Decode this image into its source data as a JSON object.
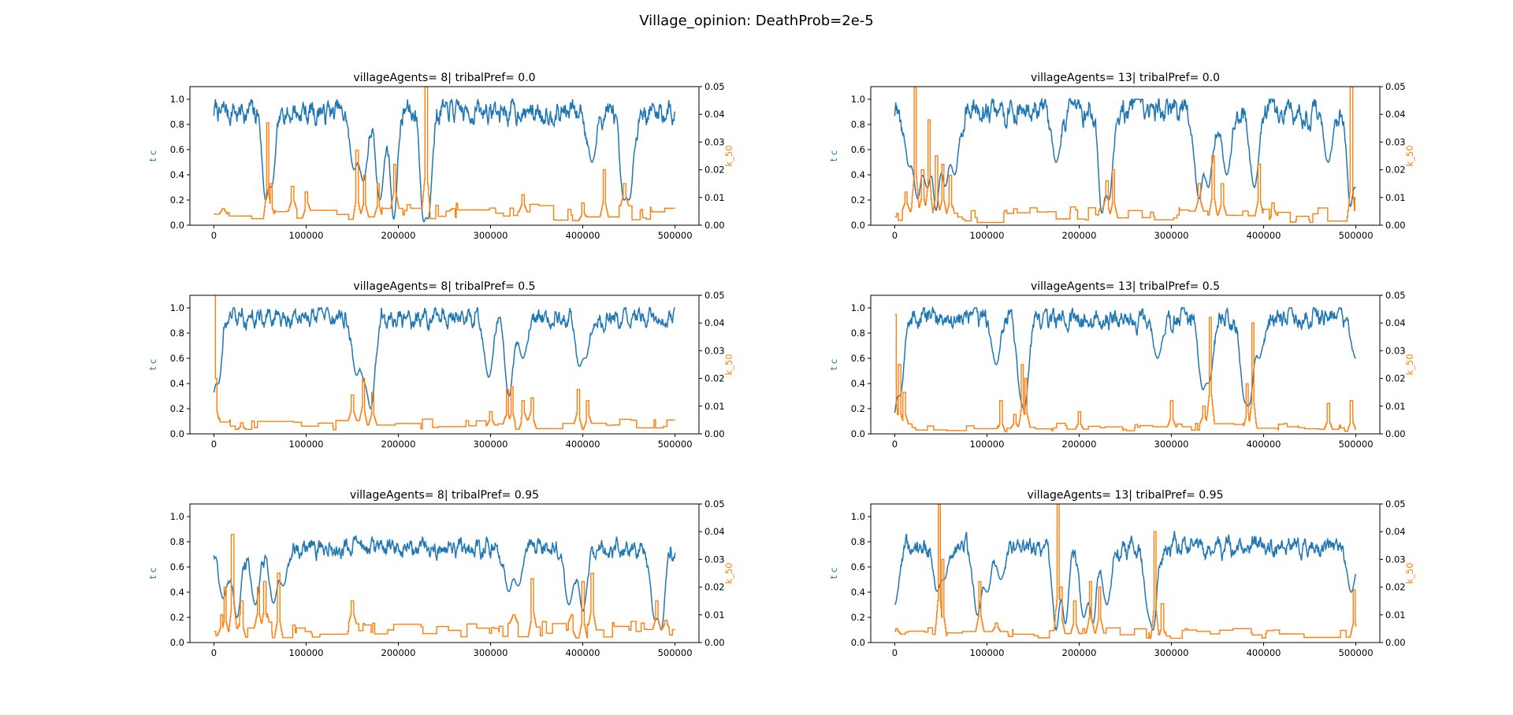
{
  "figure": {
    "suptitle": "Village_opinion: DeathProb=2e-5"
  },
  "colors": {
    "left_series": "#1f77b4",
    "right_series": "#ff7f0e",
    "axes": "#000000",
    "background": "#ffffff"
  },
  "chart_data": [
    {
      "type": "line",
      "title": "villageAgents= 8| tribalPref= 0.0",
      "ylabel": "t c",
      "y2label": "k_50",
      "xlim": [
        -26000,
        526000
      ],
      "ylim": [
        0.0,
        1.1
      ],
      "y2lim": [
        0.0,
        0.05
      ],
      "xticks": [
        0,
        100000,
        200000,
        300000,
        400000,
        500000
      ],
      "yticks": [
        0.0,
        0.2,
        0.4,
        0.6,
        0.8,
        1.0
      ],
      "y2ticks": [
        0.0,
        0.01,
        0.02,
        0.03,
        0.04,
        0.05
      ],
      "series": [
        {
          "axis": "left",
          "color": "#1f77b4",
          "base": 0.9,
          "spread": 0.055,
          "dips": [
            [
              57000,
              0.1
            ],
            [
              62000,
              0.3
            ],
            [
              152000,
              0.45
            ],
            [
              162000,
              0.35
            ],
            [
              180000,
              0.2
            ],
            [
              195000,
              0.05
            ],
            [
              228000,
              0.0
            ],
            [
              232000,
              0.05
            ],
            [
              410000,
              0.5
            ],
            [
              445000,
              0.2
            ],
            [
              450000,
              0.2
            ]
          ]
        },
        {
          "axis": "right",
          "color": "#ff7f0e",
          "base": 0.004,
          "spread": 0.003,
          "spikes": [
            [
              10000,
              0.006
            ],
            [
              58000,
              0.037
            ],
            [
              62000,
              0.015
            ],
            [
              85000,
              0.014
            ],
            [
              100000,
              0.012
            ],
            [
              155000,
              0.027
            ],
            [
              163000,
              0.018
            ],
            [
              178000,
              0.015
            ],
            [
              196000,
              0.022
            ],
            [
              230000,
              0.05
            ],
            [
              260000,
              0.006
            ],
            [
              335000,
              0.011
            ],
            [
              400000,
              0.008
            ],
            [
              423000,
              0.02
            ],
            [
              445000,
              0.015
            ]
          ]
        }
      ]
    },
    {
      "type": "line",
      "title": "villageAgents= 13| tribalPref= 0.0",
      "ylabel": "t c",
      "y2label": "k_50",
      "xlim": [
        -26000,
        526000
      ],
      "ylim": [
        0.0,
        1.1
      ],
      "y2lim": [
        0.0,
        0.05
      ],
      "xticks": [
        0,
        100000,
        200000,
        300000,
        400000,
        500000
      ],
      "yticks": [
        0.0,
        0.2,
        0.4,
        0.6,
        0.8,
        1.0
      ],
      "y2ticks": [
        0.0,
        0.01,
        0.02,
        0.03,
        0.04,
        0.05
      ],
      "series": [
        {
          "axis": "left",
          "color": "#1f77b4",
          "base": 0.9,
          "spread": 0.06,
          "dips": [
            [
              15000,
              0.5
            ],
            [
              25000,
              0.2
            ],
            [
              35000,
              0.3
            ],
            [
              45000,
              0.1
            ],
            [
              55000,
              0.3
            ],
            [
              65000,
              0.4
            ],
            [
              175000,
              0.5
            ],
            [
              225000,
              0.05
            ],
            [
              232000,
              0.2
            ],
            [
              330000,
              0.2
            ],
            [
              340000,
              0.3
            ],
            [
              360000,
              0.4
            ],
            [
              390000,
              0.3
            ],
            [
              470000,
              0.5
            ],
            [
              495000,
              0.0
            ],
            [
              500000,
              0.3
            ]
          ]
        },
        {
          "axis": "right",
          "color": "#ff7f0e",
          "base": 0.003,
          "spread": 0.003,
          "spikes": [
            [
              12000,
              0.012
            ],
            [
              22000,
              0.05
            ],
            [
              30000,
              0.02
            ],
            [
              37000,
              0.038
            ],
            [
              45000,
              0.025
            ],
            [
              52000,
              0.022
            ],
            [
              60000,
              0.018
            ],
            [
              230000,
              0.016
            ],
            [
              237000,
              0.02
            ],
            [
              330000,
              0.015
            ],
            [
              345000,
              0.025
            ],
            [
              355000,
              0.015
            ],
            [
              395000,
              0.022
            ],
            [
              410000,
              0.008
            ],
            [
              495000,
              0.05
            ],
            [
              500000,
              0.01
            ]
          ]
        }
      ]
    },
    {
      "type": "line",
      "title": "villageAgents= 8| tribalPref= 0.5",
      "ylabel": "t c",
      "y2label": "k_50",
      "xlim": [
        -26000,
        526000
      ],
      "ylim": [
        0.0,
        1.1
      ],
      "y2lim": [
        0.0,
        0.05
      ],
      "xticks": [
        0,
        100000,
        200000,
        300000,
        400000,
        500000
      ],
      "yticks": [
        0.0,
        0.2,
        0.4,
        0.6,
        0.8,
        1.0
      ],
      "y2ticks": [
        0.0,
        0.01,
        0.02,
        0.03,
        0.04,
        0.05
      ],
      "series": [
        {
          "axis": "left",
          "color": "#1f77b4",
          "base": 0.92,
          "spread": 0.045,
          "dips": [
            [
              1000,
              0.0
            ],
            [
              3000,
              0.4
            ],
            [
              155000,
              0.45
            ],
            [
              162000,
              0.5
            ],
            [
              170000,
              0.2
            ],
            [
              298000,
              0.45
            ],
            [
              320000,
              0.3
            ],
            [
              335000,
              0.6
            ],
            [
              398000,
              0.45
            ],
            [
              402000,
              0.6
            ]
          ]
        },
        {
          "axis": "right",
          "color": "#ff7f0e",
          "base": 0.003,
          "spread": 0.002,
          "spikes": [
            [
              0,
              0.05
            ],
            [
              2000,
              0.02
            ],
            [
              30000,
              0.004
            ],
            [
              150000,
              0.014
            ],
            [
              162000,
              0.02
            ],
            [
              172000,
              0.015
            ],
            [
              300000,
              0.008
            ],
            [
              318000,
              0.016
            ],
            [
              323000,
              0.017
            ],
            [
              335000,
              0.012
            ],
            [
              345000,
              0.013
            ],
            [
              395000,
              0.016
            ],
            [
              405000,
              0.012
            ]
          ]
        }
      ]
    },
    {
      "type": "line",
      "title": "villageAgents= 13| tribalPref= 0.5",
      "ylabel": "t c",
      "y2label": "k_50",
      "xlim": [
        -26000,
        526000
      ],
      "ylim": [
        0.0,
        1.1
      ],
      "y2lim": [
        0.0,
        0.05
      ],
      "xticks": [
        0,
        100000,
        200000,
        300000,
        400000,
        500000
      ],
      "yticks": [
        0.0,
        0.2,
        0.4,
        0.6,
        0.8,
        1.0
      ],
      "y2ticks": [
        0.0,
        0.01,
        0.02,
        0.03,
        0.04,
        0.05
      ],
      "series": [
        {
          "axis": "left",
          "color": "#1f77b4",
          "base": 0.92,
          "spread": 0.05,
          "dips": [
            [
              0,
              0.0
            ],
            [
              5000,
              0.3
            ],
            [
              110000,
              0.55
            ],
            [
              137000,
              0.5
            ],
            [
              140000,
              0.2
            ],
            [
              285000,
              0.6
            ],
            [
              335000,
              0.3
            ],
            [
              340000,
              0.4
            ],
            [
              380000,
              0.3
            ],
            [
              385000,
              0.2
            ],
            [
              395000,
              0.6
            ],
            [
              500000,
              0.6
            ]
          ]
        },
        {
          "axis": "right",
          "color": "#ff7f0e",
          "base": 0.002,
          "spread": 0.0015,
          "spikes": [
            [
              0,
              0.043
            ],
            [
              5000,
              0.025
            ],
            [
              10000,
              0.015
            ],
            [
              115000,
              0.012
            ],
            [
              130000,
              0.007
            ],
            [
              138000,
              0.025
            ],
            [
              142000,
              0.02
            ],
            [
              200000,
              0.008
            ],
            [
              300000,
              0.012
            ],
            [
              335000,
              0.01
            ],
            [
              342000,
              0.042
            ],
            [
              382000,
              0.018
            ],
            [
              388000,
              0.04
            ],
            [
              470000,
              0.011
            ],
            [
              495000,
              0.012
            ]
          ]
        }
      ]
    },
    {
      "type": "line",
      "title": "villageAgents= 8| tribalPref= 0.95",
      "ylabel": "t c",
      "y2label": "k_50",
      "xlim": [
        -26000,
        526000
      ],
      "ylim": [
        0.0,
        1.1
      ],
      "y2lim": [
        0.0,
        0.05
      ],
      "xticks": [
        0,
        100000,
        200000,
        300000,
        400000,
        500000
      ],
      "yticks": [
        0.0,
        0.2,
        0.4,
        0.6,
        0.8,
        1.0
      ],
      "y2ticks": [
        0.0,
        0.01,
        0.02,
        0.03,
        0.04,
        0.05
      ],
      "series": [
        {
          "axis": "left",
          "color": "#1f77b4",
          "base": 0.75,
          "spread": 0.045,
          "dips": [
            [
              10000,
              0.35
            ],
            [
              25000,
              0.2
            ],
            [
              45000,
              0.3
            ],
            [
              65000,
              0.3
            ],
            [
              75000,
              0.45
            ],
            [
              320000,
              0.4
            ],
            [
              330000,
              0.45
            ],
            [
              385000,
              0.3
            ],
            [
              400000,
              0.25
            ],
            [
              478000,
              0.2
            ],
            [
              485000,
              0.1
            ]
          ]
        },
        {
          "axis": "right",
          "color": "#ff7f0e",
          "base": 0.004,
          "spread": 0.003,
          "spikes": [
            [
              8000,
              0.01
            ],
            [
              12000,
              0.02
            ],
            [
              20000,
              0.039
            ],
            [
              30000,
              0.015
            ],
            [
              48000,
              0.02
            ],
            [
              55000,
              0.022
            ],
            [
              70000,
              0.025
            ],
            [
              150000,
              0.015
            ],
            [
              325000,
              0.01
            ],
            [
              345000,
              0.023
            ],
            [
              388000,
              0.01
            ],
            [
              400000,
              0.022
            ],
            [
              410000,
              0.025
            ],
            [
              480000,
              0.015
            ],
            [
              490000,
              0.008
            ]
          ]
        }
      ]
    },
    {
      "type": "line",
      "title": "villageAgents= 13| tribalPref= 0.95",
      "ylabel": "t c",
      "y2label": "k_50",
      "xlim": [
        -26000,
        526000
      ],
      "ylim": [
        0.0,
        1.1
      ],
      "y2lim": [
        0.0,
        0.05
      ],
      "xticks": [
        0,
        100000,
        200000,
        300000,
        400000,
        500000
      ],
      "yticks": [
        0.0,
        0.2,
        0.4,
        0.6,
        0.8,
        1.0
      ],
      "y2ticks": [
        0.0,
        0.01,
        0.02,
        0.03,
        0.04,
        0.05
      ],
      "series": [
        {
          "axis": "left",
          "color": "#1f77b4",
          "base": 0.76,
          "spread": 0.045,
          "dips": [
            [
              0,
              0.3
            ],
            [
              48000,
              0.3
            ],
            [
              52000,
              0.5
            ],
            [
              90000,
              0.2
            ],
            [
              100000,
              0.4
            ],
            [
              115000,
              0.5
            ],
            [
              175000,
              0.1
            ],
            [
              185000,
              0.15
            ],
            [
              205000,
              0.2
            ],
            [
              215000,
              0.15
            ],
            [
              230000,
              0.3
            ],
            [
              275000,
              0.3
            ],
            [
              280000,
              0.1
            ],
            [
              495000,
              0.4
            ]
          ]
        },
        {
          "axis": "right",
          "color": "#ff7f0e",
          "base": 0.003,
          "spread": 0.002,
          "spikes": [
            [
              2000,
              0.005
            ],
            [
              48000,
              0.05
            ],
            [
              52000,
              0.03
            ],
            [
              92000,
              0.022
            ],
            [
              110000,
              0.007
            ],
            [
              177000,
              0.05
            ],
            [
              180000,
              0.02
            ],
            [
              195000,
              0.015
            ],
            [
              212000,
              0.022
            ],
            [
              222000,
              0.02
            ],
            [
              282000,
              0.04
            ],
            [
              290000,
              0.014
            ],
            [
              498000,
              0.019
            ]
          ]
        }
      ]
    }
  ]
}
